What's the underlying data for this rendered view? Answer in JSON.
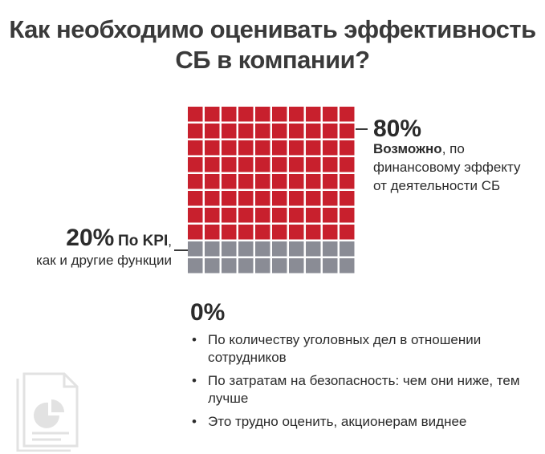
{
  "title": {
    "line1": "Как необходимо оценивать эффективность",
    "line2": "СБ в компании?"
  },
  "chart_data": {
    "type": "waffle",
    "grid": {
      "rows": 10,
      "cols": 10
    },
    "segments": [
      {
        "percent": 80,
        "label_bold": "Возможно",
        "label_rest": ", по финансовому эффекту от деятельности СБ",
        "color": "#c8202d"
      },
      {
        "percent": 20,
        "label_bold": "По KPI",
        "label_rest": ", как и другие функции",
        "color": "#8a8c95"
      }
    ],
    "zero_segment": {
      "percent": 0,
      "items": [
        "По количеству уголовных дел в отношении сотрудников",
        "По затратам на безопасность: чем они ниже, тем лучше",
        "Это трудно оценить, акционерам виднее"
      ]
    }
  },
  "labels": {
    "right_pct": "80%",
    "right_bold": "Возможно",
    "right_line1_rest": ", по",
    "right_line2": "финансовому эффекту",
    "right_line3": "от деятельности СБ",
    "left_pct": "20%",
    "left_kpi": "По KPI",
    "left_comma": ",",
    "left_line2": "как и другие функции",
    "zero_pct": "0%",
    "bullet": "•"
  },
  "colors": {
    "red": "#c8202d",
    "gray": "#8a8c95",
    "text": "#2b2b2b",
    "logo": "#e2e2e2"
  },
  "icons": {
    "logo": "document-chart-icon"
  }
}
